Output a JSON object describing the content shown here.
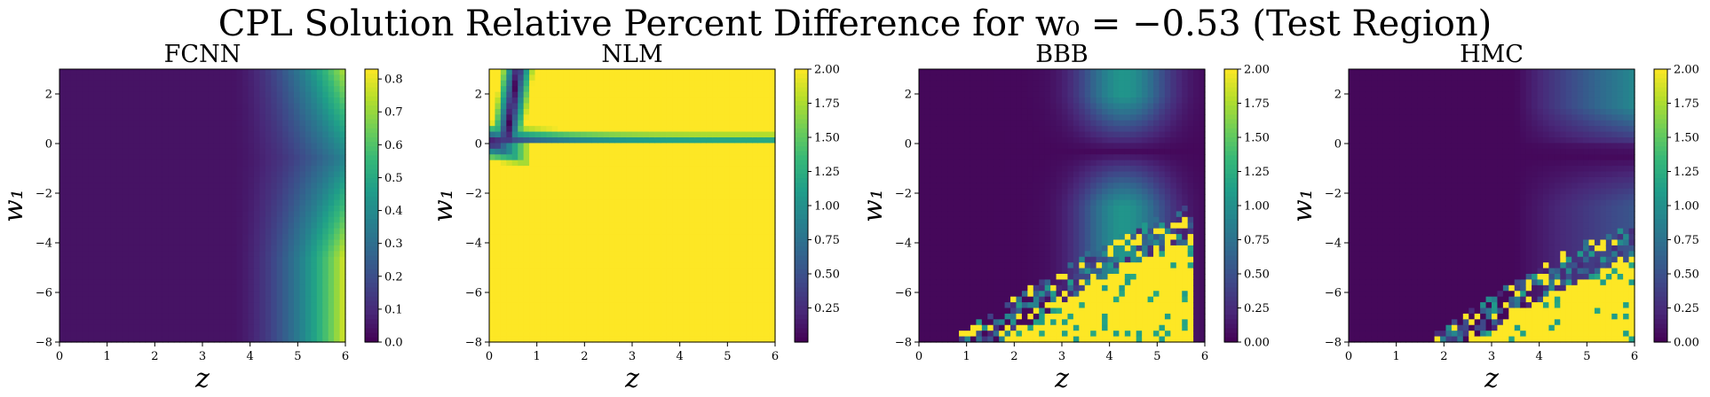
{
  "title": "CPL Solution Relative Percent Difference for w₀ = −0.53 (Test Region)",
  "colormap": [
    "#440154",
    "#482878",
    "#3e4989",
    "#31688e",
    "#26828e",
    "#1f9e89",
    "#35b779",
    "#6ece58",
    "#b5de2b",
    "#fde725"
  ],
  "chart_data": [
    {
      "type": "heatmap",
      "title": "FCNN",
      "xlabel": "z",
      "ylabel": "w₁",
      "xlim": [
        0,
        6
      ],
      "ylim": [
        -8,
        3
      ],
      "xticks": [
        "0",
        "1",
        "2",
        "3",
        "4",
        "5",
        "6"
      ],
      "yticks": [
        "2",
        "0",
        "−2",
        "−4",
        "−6",
        "−8"
      ],
      "colorbar": {
        "min": 0.0,
        "max": 0.83,
        "ticks": [
          "0.0",
          "0.1",
          "0.2",
          "0.3",
          "0.4",
          "0.5",
          "0.6",
          "0.7",
          "0.8"
        ]
      }
    },
    {
      "type": "heatmap",
      "title": "NLM",
      "xlabel": "z",
      "ylabel": "w₁",
      "xlim": [
        0,
        6
      ],
      "ylim": [
        -8,
        3
      ],
      "xticks": [
        "0",
        "1",
        "2",
        "3",
        "4",
        "5",
        "6"
      ],
      "yticks": [
        "2",
        "0",
        "−2",
        "−4",
        "−6",
        "−8"
      ],
      "colorbar": {
        "min": 0.0,
        "max": 2.0,
        "ticks": [
          "0.25",
          "0.50",
          "0.75",
          "1.00",
          "1.25",
          "1.50",
          "1.75",
          "2.00"
        ]
      }
    },
    {
      "type": "heatmap",
      "title": "BBB",
      "xlabel": "z",
      "ylabel": "w₁",
      "xlim": [
        0,
        6
      ],
      "ylim": [
        -8,
        3
      ],
      "xticks": [
        "0",
        "1",
        "2",
        "3",
        "4",
        "5",
        "6"
      ],
      "yticks": [
        "2",
        "0",
        "−2",
        "−4",
        "−6",
        "−8"
      ],
      "colorbar": {
        "min": 0.0,
        "max": 2.0,
        "ticks": [
          "0.00",
          "0.25",
          "0.50",
          "0.75",
          "1.00",
          "1.25",
          "1.50",
          "1.75",
          "2.00"
        ]
      }
    },
    {
      "type": "heatmap",
      "title": "HMC",
      "xlabel": "z",
      "ylabel": "w₁",
      "xlim": [
        0,
        6
      ],
      "ylim": [
        -8,
        3
      ],
      "xticks": [
        "0",
        "1",
        "2",
        "3",
        "4",
        "5",
        "6"
      ],
      "yticks": [
        "2",
        "0",
        "−2",
        "−4",
        "−6",
        "−8"
      ],
      "colorbar": {
        "min": 0.0,
        "max": 2.0,
        "ticks": [
          "0.00",
          "0.25",
          "0.50",
          "0.75",
          "1.00",
          "1.25",
          "1.50",
          "1.75",
          "2.00"
        ]
      }
    }
  ]
}
